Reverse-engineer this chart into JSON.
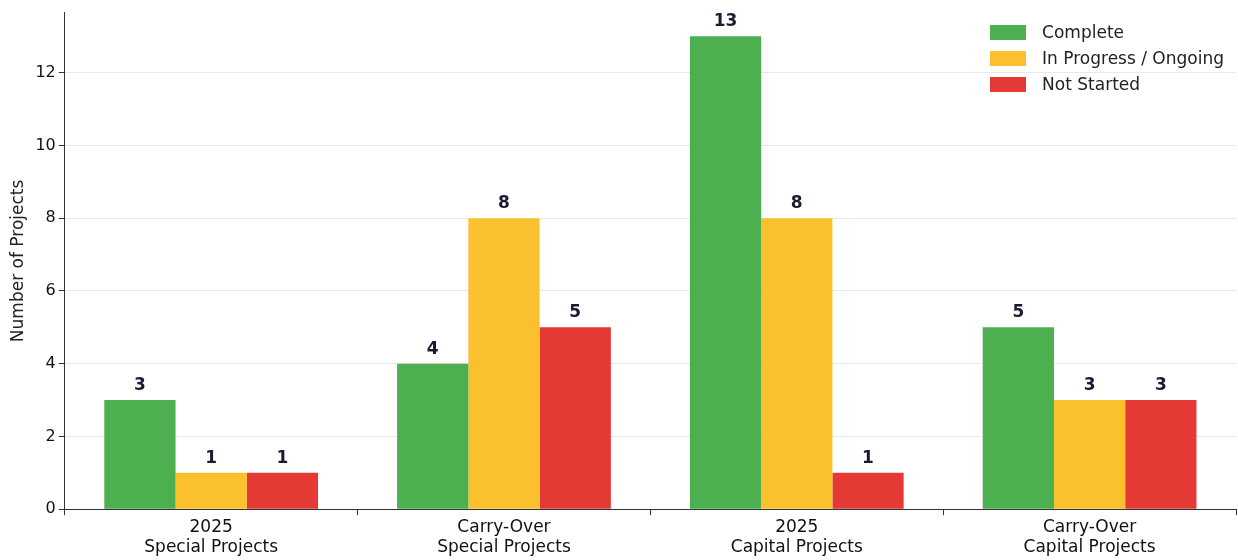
{
  "chart_data": {
    "type": "bar",
    "ylabel": "Number of Projects",
    "categories": [
      "2025\nSpecial Projects",
      "Carry-Over\nSpecial Projects",
      "2025\nCapital Projects",
      "Carry-Over\nCapital Projects"
    ],
    "series": [
      {
        "name": "Complete",
        "color": "#4caf50",
        "values": [
          3,
          4,
          13,
          5
        ]
      },
      {
        "name": "In Progress / Ongoing",
        "color": "#fbc02d",
        "values": [
          1,
          8,
          8,
          3
        ]
      },
      {
        "name": "Not Started",
        "color": "#e53935",
        "values": [
          1,
          5,
          1,
          3
        ]
      }
    ],
    "ylim": [
      0,
      13.65
    ],
    "yticks": [
      0,
      2,
      4,
      6,
      8,
      10,
      12
    ],
    "grid": "y",
    "legend": "top right",
    "data_labels": true
  }
}
